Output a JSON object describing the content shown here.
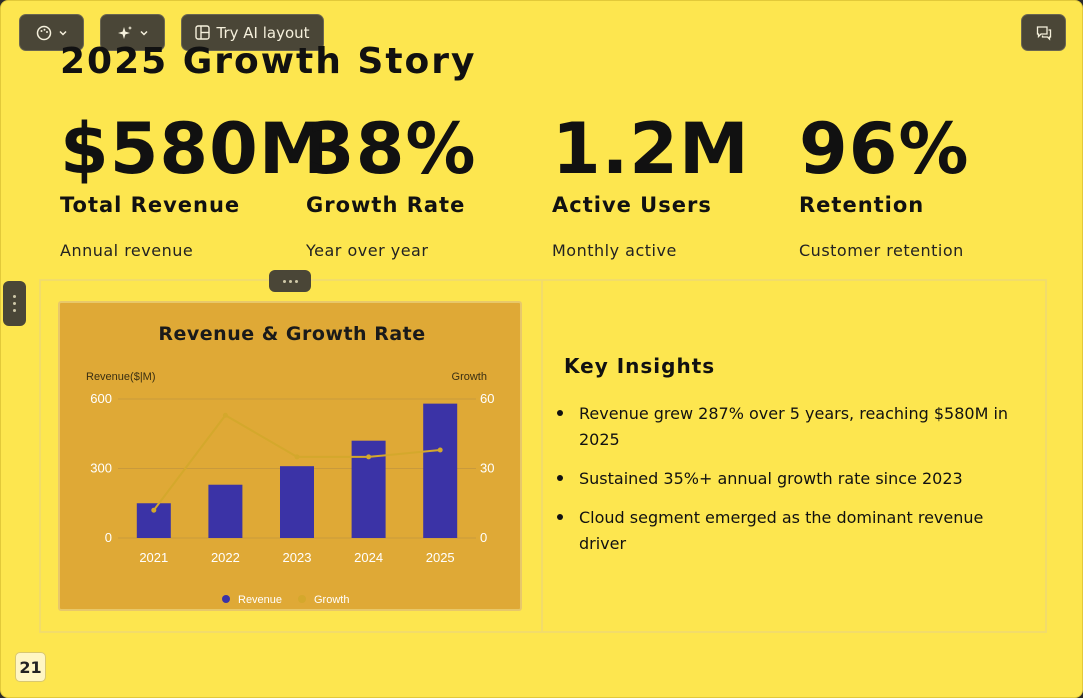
{
  "toolbar": {
    "theme_icon": "palette-icon",
    "ai_icon": "sparkles-icon",
    "layout_icon": "layout-icon",
    "try_ai_label": "Try AI layout",
    "comments_icon": "comments-icon"
  },
  "slide": {
    "title": "2025 Growth Story",
    "page_number": "21"
  },
  "stats": [
    {
      "value": "$580M",
      "label": "Total Revenue",
      "sub": "Annual revenue"
    },
    {
      "value": "38%",
      "label": "Growth Rate",
      "sub": "Year over year"
    },
    {
      "value": "1.2M",
      "label": "Active Users",
      "sub": "Monthly active"
    },
    {
      "value": "96%",
      "label": "Retention",
      "sub": "Customer retention"
    }
  ],
  "chart_data": {
    "type": "bar",
    "title": "Revenue & Growth Rate",
    "categories": [
      "2021",
      "2022",
      "2023",
      "2024",
      "2025"
    ],
    "series": [
      {
        "name": "Revenue",
        "type": "bar",
        "axis": "left",
        "values": [
          150,
          230,
          310,
          420,
          580
        ],
        "color": "#3b33a6"
      },
      {
        "name": "Growth",
        "type": "line",
        "axis": "right",
        "values": [
          12,
          53,
          35,
          35,
          38
        ],
        "color": "#d4a82c"
      }
    ],
    "ylabel_left": "Revenue($|M)",
    "ylabel_right": "Growth",
    "ylim_left": [
      0,
      600
    ],
    "ylim_right": [
      0,
      60
    ],
    "yticks_left": [
      "0",
      "300",
      "600"
    ],
    "yticks_right": [
      "0",
      "30",
      "60"
    ],
    "legend": "bottom",
    "grid": true
  },
  "insights": {
    "title": "Key Insights",
    "items": [
      "Revenue grew 287% over 5 years, reaching $580M in 2025",
      "Sustained 35%+ annual growth rate since 2023",
      "Cloud segment emerged as the dominant revenue driver"
    ]
  }
}
